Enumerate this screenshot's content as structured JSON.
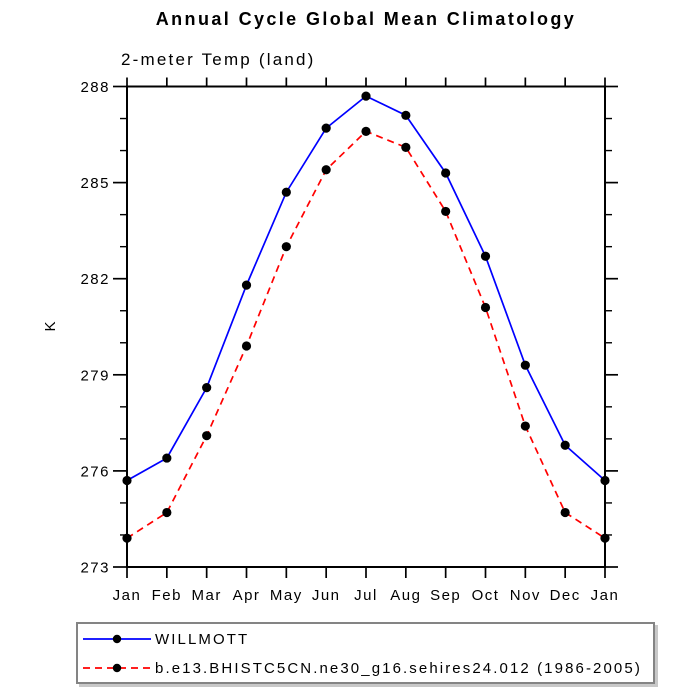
{
  "chart_data": {
    "type": "line",
    "title": "Annual Cycle Global Mean Climatology",
    "subtitle": "2-meter Temp (land)",
    "ylabel": "K",
    "xlabel": "",
    "categories": [
      "Jan",
      "Feb",
      "Mar",
      "Apr",
      "May",
      "Jun",
      "Jul",
      "Aug",
      "Sep",
      "Oct",
      "Nov",
      "Dec",
      "Jan"
    ],
    "series": [
      {
        "name": "WILLMOTT",
        "line_color": "#0000ff",
        "line_style": "solid",
        "marker": "filled-circle",
        "marker_color": "#000000",
        "values": [
          275.7,
          276.4,
          278.6,
          281.8,
          284.7,
          286.7,
          287.7,
          287.1,
          285.3,
          282.7,
          279.3,
          276.8,
          275.7
        ]
      },
      {
        "name": "b.e13.BHISTC5CN.ne30_g16.sehires24.012 (1986-2005)",
        "line_color": "#ff0000",
        "line_style": "dashed",
        "marker": "filled-circle",
        "marker_color": "#000000",
        "values": [
          273.9,
          274.7,
          277.1,
          279.9,
          283.0,
          285.4,
          286.6,
          286.1,
          284.1,
          281.1,
          277.4,
          274.7,
          273.9
        ]
      }
    ],
    "ylim": [
      273,
      288
    ],
    "y_major_ticks": [
      273,
      276,
      279,
      282,
      285,
      288
    ],
    "y_minor_step": 1,
    "grid": false,
    "legend_position": "bottom-left-box",
    "colors": {
      "axis": "#000000",
      "background": "#ffffff",
      "legend_border": "#848484"
    }
  }
}
